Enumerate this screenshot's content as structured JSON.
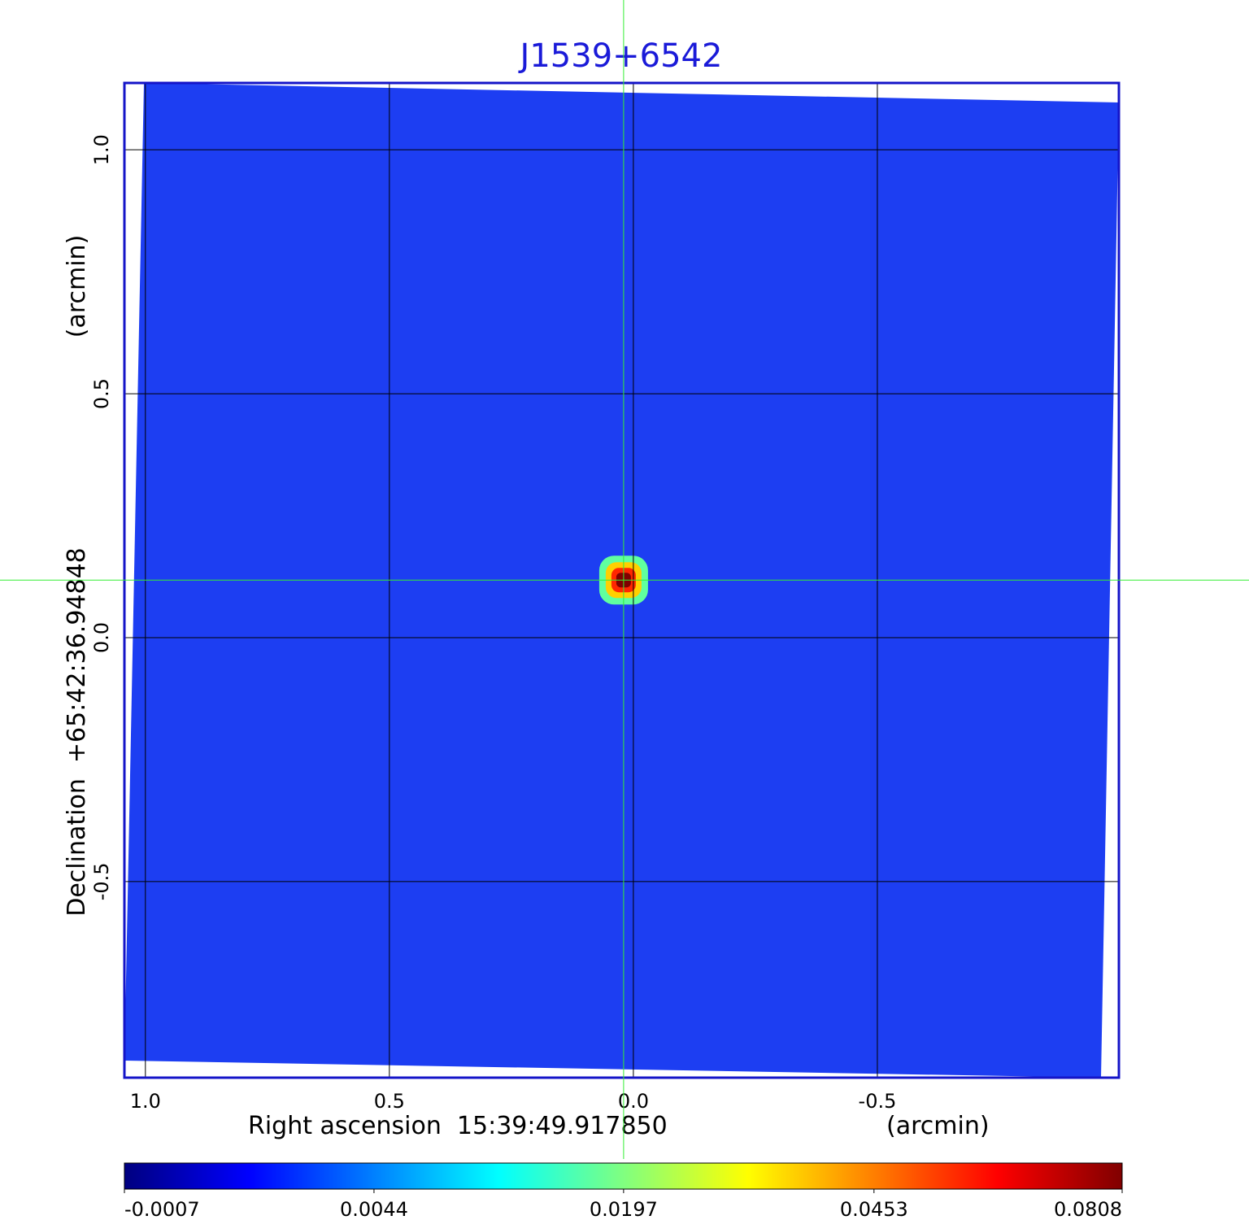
{
  "chart_data": {
    "type": "image",
    "title": "J1539+6542",
    "xlabel": "Right ascension  15:39:49.917850",
    "xunit": "(arcmin)",
    "ylabel": "Declination  +65:42:36.94848",
    "yunit": "(arcmin)",
    "xlim": [
      1.043,
      -0.995
    ],
    "ylim": [
      -0.902,
      1.137
    ],
    "xticks": [
      {
        "value": 1,
        "label": "1.0"
      },
      0.5,
      {
        "value": 0,
        "label": "0.0"
      },
      -0.5
    ],
    "yticks": [
      -0.5,
      {
        "value": 0,
        "label": "0.0"
      },
      0.5,
      {
        "value": 1,
        "label": "1.0"
      }
    ],
    "grid": true,
    "crosshair": {
      "x": 0.02,
      "y": 0.118
    },
    "source": {
      "x": 0.02,
      "y": 0.118,
      "peak": 0.0808
    },
    "colormap": "jet",
    "colorbar": {
      "scale": "sqrt",
      "lim": [
        -0.0007,
        0.0808
      ],
      "ticks": [
        -0.0007,
        0.0044,
        0.0197,
        0.0453,
        0.0808
      ]
    }
  }
}
